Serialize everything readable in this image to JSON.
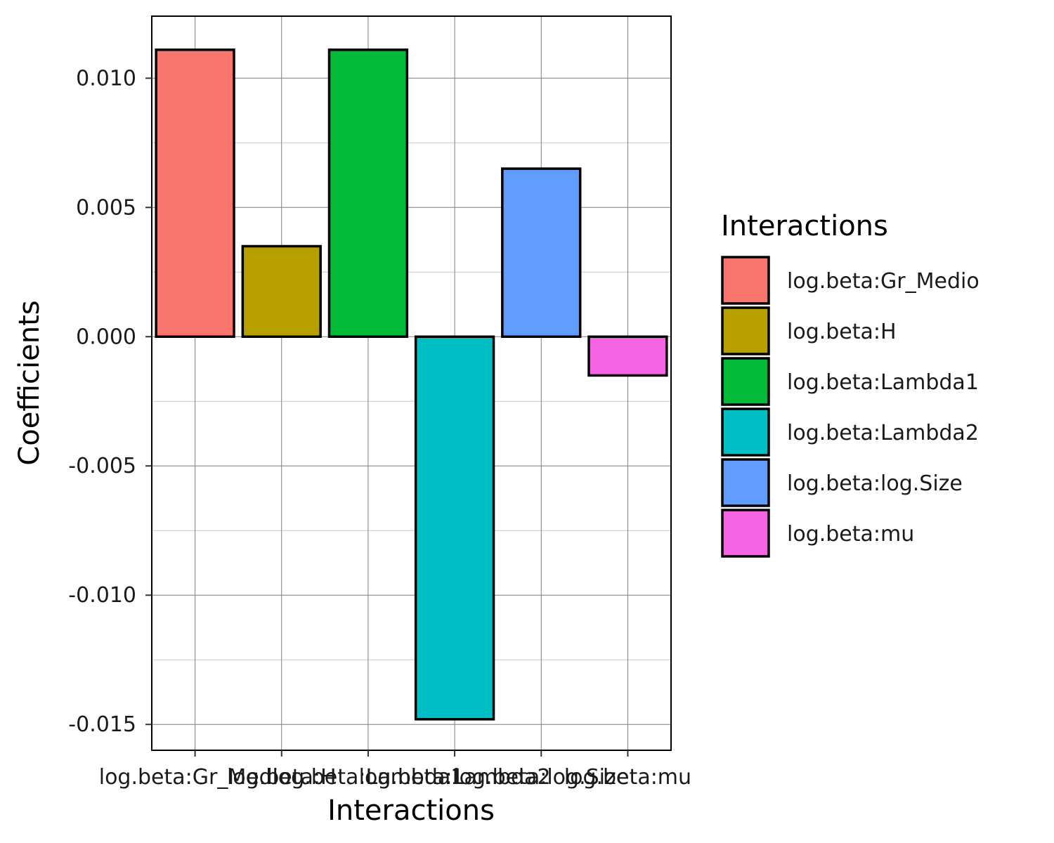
{
  "chart_data": {
    "type": "bar",
    "xlabel": "Interactions",
    "ylabel": "Coefficients",
    "categories": [
      "log.beta:Gr_Medio",
      "log.beta:H",
      "log.beta:Lambda1",
      "log.beta:Lambda2",
      "log.beta:log.Size",
      "log.beta:mu"
    ],
    "values": [
      0.0111,
      0.0035,
      0.0111,
      -0.0148,
      0.0065,
      -0.0015
    ],
    "colors": [
      "#F8766D",
      "#B79F00",
      "#00BA38",
      "#00BFC4",
      "#619CFF",
      "#F564E3"
    ],
    "ylim": [
      -0.016,
      0.0124
    ],
    "yticks": [
      0.01,
      0.005,
      0.0,
      -0.005,
      -0.01,
      -0.015
    ],
    "ytick_labels": [
      "0.010",
      "0.005",
      "0.000",
      "-0.005",
      "-0.010",
      "-0.015"
    ],
    "grid": true,
    "legend": {
      "title": "Interactions",
      "placement": "right",
      "entries": [
        "log.beta:Gr_Medio",
        "log.beta:H",
        "log.beta:Lambda1",
        "log.beta:Lambda2",
        "log.beta:log.Size",
        "log.beta:mu"
      ]
    }
  }
}
